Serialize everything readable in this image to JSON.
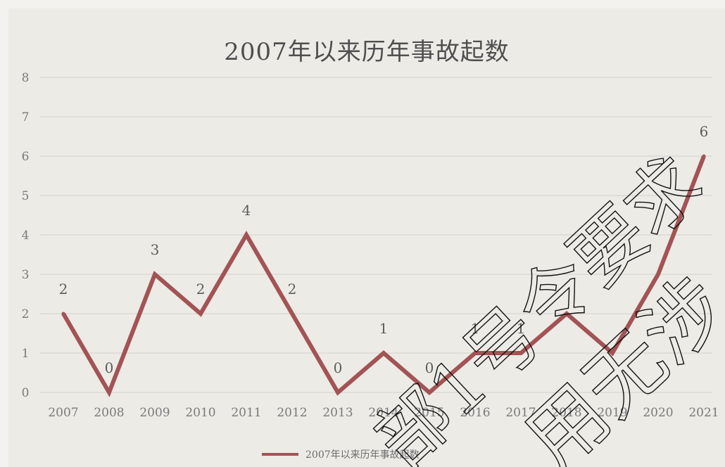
{
  "chart_data": {
    "type": "line",
    "title": "2007年以来历年事故起数",
    "categories": [
      "2007",
      "2008",
      "2009",
      "2010",
      "2011",
      "2012",
      "2013",
      "2014",
      "2015",
      "2016",
      "2017",
      "2018",
      "2019",
      "2020",
      "2021"
    ],
    "series": [
      {
        "name": "2007年以来历年事故起数",
        "values": [
          2,
          0,
          3,
          2,
          4,
          2,
          0,
          1,
          0,
          1,
          1,
          2,
          1,
          3,
          6
        ],
        "color": "#a35355"
      }
    ],
    "data_labels": [
      "2",
      "0",
      "3",
      "2",
      "4",
      "2",
      "0",
      "1",
      "0",
      "1",
      "1",
      "",
      "",
      "",
      "6"
    ],
    "ylim": [
      0,
      8
    ],
    "yticks": [
      "0",
      "1",
      "2",
      "3",
      "4",
      "5",
      "6",
      "7",
      "8"
    ],
    "grid": true,
    "legend_position": "bottom"
  },
  "watermark": {
    "lines": [
      "部1号令要求",
      "用无涉"
    ],
    "color": "#111111"
  }
}
